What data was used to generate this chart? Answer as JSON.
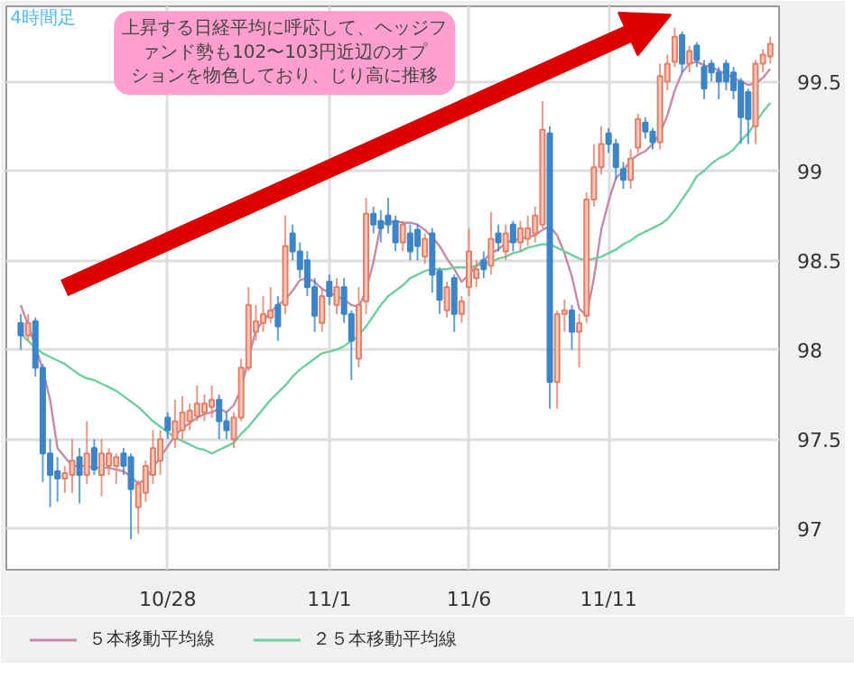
{
  "chart_data": {
    "type": "candlestick",
    "annotations": [
      "4時間足",
      "上昇する日経平均に呼応して、ヘッジファンド勢も102〜103円近辺のオプションを物色しており、じり高に推移"
    ],
    "categories": [
      null,
      null,
      null,
      null,
      null,
      null,
      null,
      null,
      null,
      null,
      null,
      null,
      null,
      null,
      null,
      null,
      null,
      null,
      null,
      null,
      "10/28",
      null,
      null,
      null,
      null,
      null,
      null,
      null,
      null,
      null,
      null,
      null,
      null,
      null,
      null,
      null,
      null,
      null,
      null,
      null,
      null,
      null,
      "11/1",
      null,
      null,
      null,
      null,
      null,
      null,
      null,
      null,
      null,
      null,
      null,
      null,
      null,
      null,
      null,
      null,
      null,
      null,
      "11/6",
      null,
      null,
      null,
      null,
      null,
      null,
      null,
      null,
      null,
      null,
      null,
      null,
      null,
      null,
      null,
      null,
      null,
      null,
      "11/11",
      null,
      null,
      null,
      null,
      null,
      null,
      null,
      null,
      null,
      null,
      null,
      null,
      null,
      null,
      null,
      null,
      null,
      null,
      null,
      null,
      null,
      null
    ],
    "ohlc": [
      [
        98.15,
        98.2,
        98.0,
        98.08
      ],
      [
        98.08,
        98.2,
        98.05,
        98.15
      ],
      [
        98.16,
        98.18,
        97.85,
        97.9
      ],
      [
        97.9,
        97.92,
        97.26,
        97.42
      ],
      [
        97.42,
        97.5,
        97.12,
        97.3
      ],
      [
        97.32,
        97.4,
        97.15,
        97.28
      ],
      [
        97.28,
        97.35,
        97.2,
        97.31
      ],
      [
        97.3,
        97.5,
        97.2,
        97.38
      ],
      [
        97.4,
        97.45,
        97.14,
        97.3
      ],
      [
        97.3,
        97.6,
        97.25,
        97.42
      ],
      [
        97.45,
        97.5,
        97.3,
        97.33
      ],
      [
        97.3,
        97.5,
        97.18,
        97.42
      ],
      [
        97.35,
        97.45,
        97.3,
        97.42
      ],
      [
        97.35,
        97.42,
        97.25,
        97.4
      ],
      [
        97.42,
        97.45,
        97.3,
        97.35
      ],
      [
        97.4,
        97.42,
        96.94,
        97.22
      ],
      [
        97.12,
        97.27,
        96.97,
        97.25
      ],
      [
        97.2,
        97.38,
        97.15,
        97.35
      ],
      [
        97.3,
        97.55,
        97.25,
        97.45
      ],
      [
        97.38,
        97.55,
        97.3,
        97.5
      ],
      [
        97.62,
        97.65,
        97.5,
        97.55
      ],
      [
        97.5,
        97.72,
        97.45,
        97.6
      ],
      [
        97.55,
        97.74,
        97.5,
        97.65
      ],
      [
        97.6,
        97.7,
        97.55,
        97.66
      ],
      [
        97.63,
        97.8,
        97.6,
        97.7
      ],
      [
        97.65,
        97.75,
        97.6,
        97.7
      ],
      [
        97.68,
        97.8,
        97.62,
        97.72
      ],
      [
        97.72,
        97.75,
        97.5,
        97.6
      ],
      [
        97.6,
        97.65,
        97.5,
        97.55
      ],
      [
        97.5,
        97.65,
        97.45,
        97.62
      ],
      [
        97.62,
        97.95,
        97.6,
        97.9
      ],
      [
        97.9,
        98.35,
        97.88,
        98.25
      ],
      [
        98.1,
        98.25,
        98.05,
        98.16
      ],
      [
        98.15,
        98.3,
        98.1,
        98.2
      ],
      [
        98.18,
        98.35,
        98.15,
        98.22
      ],
      [
        98.25,
        98.3,
        98.05,
        98.13
      ],
      [
        98.25,
        98.75,
        98.2,
        98.58
      ],
      [
        98.65,
        98.7,
        98.5,
        98.55
      ],
      [
        98.55,
        98.6,
        98.4,
        98.45
      ],
      [
        98.5,
        98.55,
        98.3,
        98.35
      ],
      [
        98.35,
        98.4,
        98.1,
        98.19
      ],
      [
        98.15,
        98.35,
        98.1,
        98.3
      ],
      [
        98.38,
        98.42,
        98.25,
        98.3
      ],
      [
        98.25,
        98.4,
        98.2,
        98.35
      ],
      [
        98.35,
        98.4,
        98.15,
        98.2
      ],
      [
        98.2,
        98.22,
        97.83,
        98.05
      ],
      [
        97.95,
        98.35,
        97.9,
        98.25
      ],
      [
        98.27,
        98.85,
        98.2,
        98.76
      ],
      [
        98.76,
        98.8,
        98.65,
        98.7
      ],
      [
        98.72,
        98.78,
        98.6,
        98.68
      ],
      [
        98.75,
        98.85,
        98.65,
        98.7
      ],
      [
        98.72,
        98.75,
        98.55,
        98.6
      ],
      [
        98.6,
        98.72,
        98.55,
        98.7
      ],
      [
        98.65,
        98.7,
        98.5,
        98.55
      ],
      [
        98.67,
        98.7,
        98.5,
        98.58
      ],
      [
        98.52,
        98.65,
        98.48,
        98.62
      ],
      [
        98.65,
        98.68,
        98.32,
        98.42
      ],
      [
        98.44,
        98.46,
        98.2,
        98.28
      ],
      [
        98.22,
        98.38,
        98.18,
        98.35
      ],
      [
        98.4,
        98.42,
        98.1,
        98.2
      ],
      [
        98.2,
        98.3,
        98.15,
        98.27
      ],
      [
        98.35,
        98.68,
        98.3,
        98.55
      ],
      [
        98.4,
        98.5,
        98.35,
        98.45
      ],
      [
        98.5,
        98.55,
        98.4,
        98.45
      ],
      [
        98.47,
        98.77,
        98.42,
        98.62
      ],
      [
        98.65,
        98.7,
        98.55,
        98.6
      ],
      [
        98.55,
        98.7,
        98.5,
        98.65
      ],
      [
        98.7,
        98.72,
        98.55,
        98.6
      ],
      [
        98.6,
        98.72,
        98.55,
        98.68
      ],
      [
        98.62,
        98.75,
        98.58,
        98.68
      ],
      [
        98.65,
        98.8,
        98.6,
        98.75
      ],
      [
        98.7,
        99.39,
        98.68,
        99.23
      ],
      [
        99.21,
        99.25,
        97.67,
        97.82
      ],
      [
        97.82,
        98.22,
        97.67,
        98.2
      ],
      [
        98.2,
        98.28,
        98.1,
        98.22
      ],
      [
        98.22,
        98.25,
        98.0,
        98.1
      ],
      [
        98.1,
        98.2,
        97.9,
        98.15
      ],
      [
        98.19,
        98.88,
        98.15,
        98.84
      ],
      [
        98.84,
        99.15,
        98.8,
        99.02
      ],
      [
        99.02,
        99.25,
        98.98,
        99.15
      ],
      [
        99.21,
        99.24,
        99.1,
        99.15
      ],
      [
        99.15,
        99.18,
        98.95,
        99.02
      ],
      [
        99.01,
        99.05,
        98.9,
        98.95
      ],
      [
        98.95,
        99.12,
        98.9,
        99.07
      ],
      [
        99.13,
        99.32,
        99.1,
        99.29
      ],
      [
        99.27,
        99.3,
        99.18,
        99.22
      ],
      [
        99.22,
        99.24,
        99.12,
        99.16
      ],
      [
        99.16,
        99.6,
        99.12,
        99.53
      ],
      [
        99.5,
        99.65,
        99.45,
        99.6
      ],
      [
        99.61,
        99.8,
        99.58,
        99.75
      ],
      [
        99.76,
        99.78,
        99.55,
        99.6
      ],
      [
        99.6,
        99.7,
        99.55,
        99.67
      ],
      [
        99.7,
        99.72,
        99.58,
        99.62
      ],
      [
        99.58,
        99.62,
        99.4,
        99.46
      ],
      [
        99.6,
        99.62,
        99.5,
        99.55
      ],
      [
        99.55,
        99.58,
        99.4,
        99.5
      ],
      [
        99.6,
        99.62,
        99.45,
        99.5
      ],
      [
        99.55,
        99.58,
        99.4,
        99.45
      ],
      [
        99.5,
        99.52,
        99.15,
        99.3
      ],
      [
        99.44,
        99.46,
        99.15,
        99.29
      ],
      [
        99.25,
        99.62,
        99.15,
        99.6
      ],
      [
        99.6,
        99.68,
        99.55,
        99.65
      ],
      [
        99.64,
        99.75,
        99.6,
        99.71
      ]
    ],
    "series": [
      {
        "type": "line",
        "name": "５本移動平均線",
        "color": "#c58aa8",
        "values": [
          98.25,
          98.14,
          98.02,
          97.89,
          97.72,
          97.45,
          97.4,
          97.35,
          97.35,
          97.35,
          97.34,
          97.34,
          97.34,
          97.33,
          97.32,
          97.29,
          97.25,
          97.28,
          97.34,
          97.4,
          97.46,
          97.52,
          97.56,
          97.59,
          97.62,
          97.64,
          97.65,
          97.67,
          97.65,
          97.69,
          97.78,
          97.95,
          98.11,
          98.16,
          98.21,
          98.25,
          98.28,
          98.33,
          98.39,
          98.4,
          98.38,
          98.34,
          98.32,
          98.3,
          98.28,
          98.25,
          98.24,
          98.33,
          98.49,
          98.7,
          98.71,
          98.72,
          98.71,
          98.71,
          98.7,
          98.67,
          98.63,
          98.58,
          98.51,
          98.45,
          98.38,
          98.42,
          98.47,
          98.5,
          98.54,
          98.56,
          98.6,
          98.61,
          98.62,
          98.63,
          98.64,
          98.67,
          98.69,
          98.64,
          98.54,
          98.41,
          98.23,
          98.19,
          98.4,
          98.67,
          98.83,
          98.96,
          99.0,
          99.06,
          99.09,
          99.11,
          99.15,
          99.21,
          99.31,
          99.45,
          99.55,
          99.6,
          99.61,
          99.59,
          99.58,
          99.56,
          99.54,
          99.52,
          99.5,
          99.48,
          99.49,
          99.52,
          99.57
        ]
      },
      {
        "type": "line",
        "name": "２５本移動平均線",
        "color": "#6fcf9f",
        "values": [
          98.09,
          98.05,
          98.01,
          97.98,
          97.96,
          97.94,
          97.92,
          97.89,
          97.86,
          97.84,
          97.83,
          97.81,
          97.79,
          97.77,
          97.74,
          97.71,
          97.68,
          97.64,
          97.6,
          97.57,
          97.54,
          97.51,
          97.49,
          97.47,
          97.45,
          97.44,
          97.42,
          97.44,
          97.46,
          97.48,
          97.53,
          97.57,
          97.62,
          97.67,
          97.72,
          97.76,
          97.8,
          97.85,
          97.89,
          97.92,
          97.95,
          97.98,
          97.99,
          98.0,
          98.02,
          98.05,
          98.08,
          98.13,
          98.19,
          98.25,
          98.3,
          98.33,
          98.36,
          98.4,
          98.42,
          98.44,
          98.45,
          98.45,
          98.45,
          98.46,
          98.46,
          98.46,
          98.47,
          98.48,
          98.49,
          98.51,
          98.52,
          98.54,
          98.55,
          98.57,
          98.58,
          98.59,
          98.59,
          98.57,
          98.55,
          98.53,
          98.51,
          98.5,
          98.51,
          98.52,
          98.54,
          98.56,
          98.59,
          98.61,
          98.64,
          98.66,
          98.68,
          98.7,
          98.73,
          98.78,
          98.84,
          98.9,
          98.97,
          99.0,
          99.04,
          99.07,
          99.09,
          99.12,
          99.17,
          99.21,
          99.27,
          99.33,
          99.38
        ]
      }
    ],
    "ylim": [
      96.77,
      99.92
    ],
    "yticks": [
      97,
      97.5,
      98,
      98.5,
      99,
      99.5
    ],
    "grid": true,
    "legend": "bottom",
    "line_style": "solid"
  }
}
